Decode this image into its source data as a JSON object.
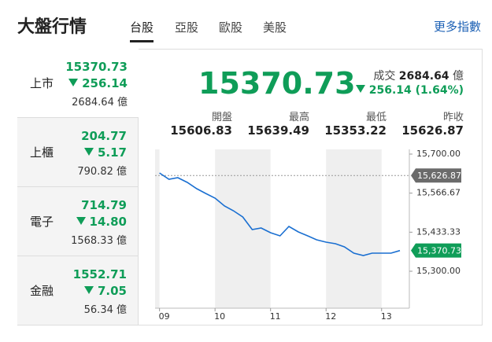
{
  "header": {
    "title": "大盤行情",
    "tabs": [
      "台股",
      "亞股",
      "歐股",
      "美股"
    ],
    "more": "更多指數"
  },
  "sidebar": [
    {
      "name": "上市",
      "value": "15370.73",
      "change": "256.14",
      "volume": "2684.64 億"
    },
    {
      "name": "上櫃",
      "value": "204.77",
      "change": "5.17",
      "volume": "790.82 億"
    },
    {
      "name": "電子",
      "value": "714.79",
      "change": "14.80",
      "volume": "1568.33 億"
    },
    {
      "name": "金融",
      "value": "1552.71",
      "change": "7.05",
      "volume": "56.34 億"
    }
  ],
  "summary": {
    "price": "15370.73",
    "volume_label": "成交",
    "volume": "2684.64",
    "volume_unit": "億",
    "change": "256.14 (1.64%)",
    "stats": [
      {
        "label": "開盤",
        "value": "15606.83"
      },
      {
        "label": "最高",
        "value": "15639.49"
      },
      {
        "label": "最低",
        "value": "15353.22"
      },
      {
        "label": "昨收",
        "value": "15626.87"
      }
    ]
  },
  "chart_data": {
    "type": "line",
    "x": [
      9,
      9.17,
      9.33,
      9.5,
      9.67,
      9.83,
      10,
      10.17,
      10.33,
      10.5,
      10.67,
      10.83,
      11,
      11.17,
      11.33,
      11.5,
      11.67,
      11.83,
      12,
      12.17,
      12.33,
      12.5,
      12.67,
      12.83,
      13,
      13.17,
      13.33
    ],
    "series": [
      {
        "color": "#1a6fd1",
        "values": [
          15635.6,
          15614.1,
          15619.4,
          15603.3,
          15581.8,
          15565.7,
          15549.6,
          15522.8,
          15506.7,
          15485.2,
          15442.3,
          15447.6,
          15431.5,
          15420.8,
          15453.0,
          15434.2,
          15420.8,
          15407.3,
          15399.3,
          15393.9,
          15383.2,
          15361.7,
          15353.6,
          15361.7,
          15361.7,
          15361.7,
          15370.73
        ]
      }
    ],
    "xlim": [
      8.92,
      13.5
    ],
    "xticks": [
      {
        "value": 9,
        "label": "09"
      },
      {
        "value": 10,
        "label": "10"
      },
      {
        "value": 11,
        "label": "11"
      },
      {
        "value": 12,
        "label": "12"
      },
      {
        "value": 13,
        "label": "13"
      }
    ],
    "ylim": [
      15300,
      15700
    ],
    "yticks": [
      {
        "value": 15300,
        "label": "15,300.00"
      },
      {
        "value": 15433.33,
        "label": "15,433.33"
      },
      {
        "value": 15566.67,
        "label": "15,566.67"
      },
      {
        "value": 15700,
        "label": "15,700.00"
      }
    ],
    "markers": [
      {
        "value": 15626.87,
        "label": "15,626.87",
        "color": "#6b6b6b"
      },
      {
        "value": 15370.73,
        "label": "15,370.73",
        "color": "#0f9d58"
      }
    ]
  }
}
